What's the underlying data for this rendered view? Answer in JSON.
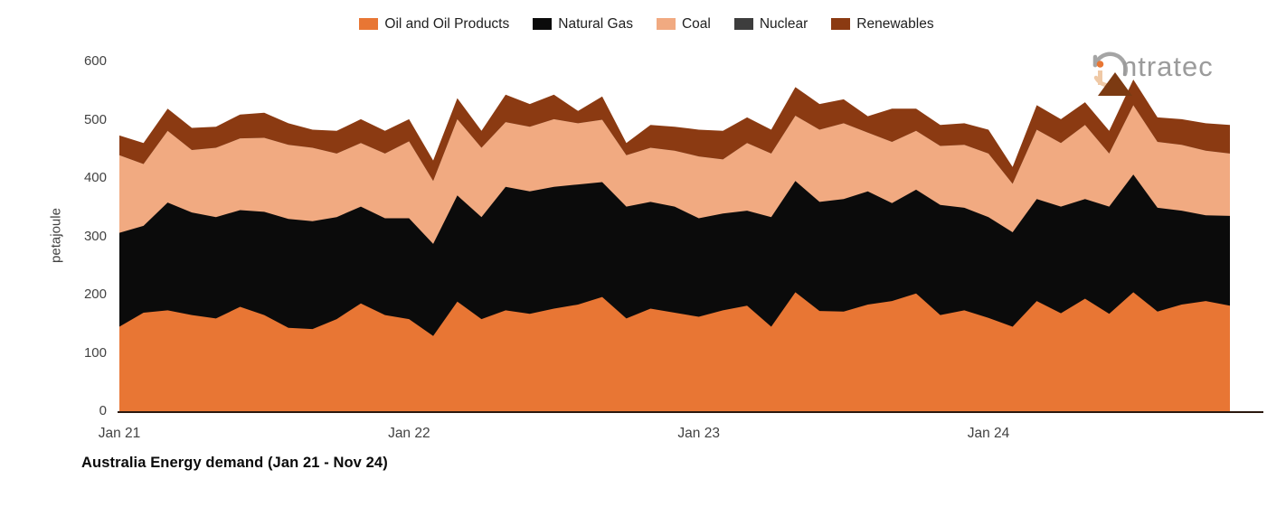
{
  "title": "Australia Energy demand (Jan 21 - Nov 24)",
  "logo": {
    "wordmark": "ntratec",
    "brand": "intratec"
  },
  "legend": {
    "items": [
      {
        "label": "Oil and Oil Products",
        "color": "#E87634"
      },
      {
        "label": "Natural Gas",
        "color": "#0B0B0B"
      },
      {
        "label": "Coal",
        "color": "#F1AA81"
      },
      {
        "label": "Nuclear",
        "color": "#3D3D3D"
      },
      {
        "label": "Renewables",
        "color": "#8B3A12"
      }
    ]
  },
  "y_axis": {
    "label": "petajoule",
    "ticks": [
      0,
      100,
      200,
      300,
      400,
      500,
      600
    ]
  },
  "x_axis": {
    "ticks": [
      "Jan 21",
      "Jan 22",
      "Jan 23",
      "Jan 24"
    ]
  },
  "chart_data": {
    "type": "area",
    "stacked": true,
    "title": "Australia Energy demand (Jan 21 - Nov 24)",
    "ylabel": "petajoule",
    "ylim": [
      0,
      600
    ],
    "grid": false,
    "legend_position": "top",
    "x": [
      "Jan 21",
      "Feb 21",
      "Mar 21",
      "Apr 21",
      "May 21",
      "Jun 21",
      "Jul 21",
      "Aug 21",
      "Sep 21",
      "Oct 21",
      "Nov 21",
      "Dec 21",
      "Jan 22",
      "Feb 22",
      "Mar 22",
      "Apr 22",
      "May 22",
      "Jun 22",
      "Jul 22",
      "Aug 22",
      "Sep 22",
      "Oct 22",
      "Nov 22",
      "Dec 22",
      "Jan 23",
      "Feb 23",
      "Mar 23",
      "Apr 23",
      "May 23",
      "Jun 23",
      "Jul 23",
      "Aug 23",
      "Sep 23",
      "Oct 23",
      "Nov 23",
      "Dec 23",
      "Jan 24",
      "Feb 24",
      "Mar 24",
      "Apr 24",
      "May 24",
      "Jun 24",
      "Jul 24",
      "Aug 24",
      "Sep 24",
      "Oct 24",
      "Nov 24"
    ],
    "series": [
      {
        "name": "Oil and Oil Products",
        "color": "#E87634",
        "values": [
          145,
          169,
          173,
          165,
          159,
          179,
          165,
          143,
          141,
          158,
          185,
          165,
          158,
          129,
          188,
          158,
          173,
          167,
          176,
          183,
          196,
          159,
          176,
          169,
          162,
          173,
          181,
          145,
          204,
          172,
          171,
          183,
          189,
          202,
          165,
          173,
          160,
          145,
          189,
          168,
          193,
          167,
          204,
          171,
          183,
          189,
          181
        ]
      },
      {
        "name": "Natural Gas",
        "color": "#0B0B0B",
        "values": [
          161,
          149,
          185,
          176,
          174,
          166,
          177,
          187,
          185,
          175,
          166,
          166,
          173,
          158,
          182,
          175,
          212,
          210,
          209,
          206,
          197,
          192,
          183,
          182,
          169,
          166,
          163,
          188,
          191,
          187,
          193,
          194,
          168,
          178,
          189,
          176,
          173,
          162,
          175,
          183,
          171,
          184,
          202,
          178,
          161,
          147,
          154
        ]
      },
      {
        "name": "Coal",
        "color": "#F1AA81",
        "values": [
          133,
          106,
          123,
          107,
          119,
          123,
          127,
          127,
          126,
          109,
          109,
          111,
          132,
          108,
          131,
          119,
          111,
          111,
          116,
          105,
          107,
          88,
          93,
          96,
          106,
          93,
          116,
          109,
          112,
          124,
          130,
          101,
          105,
          101,
          101,
          108,
          109,
          83,
          119,
          109,
          127,
          91,
          119,
          113,
          113,
          111,
          107
        ]
      },
      {
        "name": "Nuclear",
        "color": "#3D3D3D",
        "values": [
          0,
          0,
          0,
          0,
          0,
          0,
          0,
          0,
          0,
          0,
          0,
          0,
          0,
          0,
          0,
          0,
          0,
          0,
          0,
          0,
          0,
          0,
          0,
          0,
          0,
          0,
          0,
          0,
          0,
          0,
          0,
          0,
          0,
          0,
          0,
          0,
          0,
          0,
          0,
          0,
          0,
          0,
          0,
          0,
          0,
          0,
          0
        ]
      },
      {
        "name": "Renewables",
        "color": "#8B3A12",
        "values": [
          34,
          36,
          38,
          38,
          36,
          41,
          43,
          37,
          31,
          39,
          41,
          39,
          38,
          35,
          36,
          29,
          47,
          39,
          42,
          21,
          40,
          21,
          39,
          41,
          46,
          49,
          44,
          41,
          49,
          44,
          41,
          28,
          57,
          38,
          36,
          37,
          41,
          29,
          42,
          41,
          39,
          39,
          44,
          42,
          44,
          47,
          49
        ]
      }
    ]
  }
}
